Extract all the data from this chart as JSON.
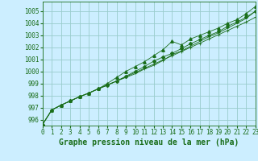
{
  "background_color": "#cceeff",
  "grid_color": "#99cccc",
  "line_color": "#1a6e1a",
  "x_values": [
    0,
    1,
    2,
    3,
    4,
    5,
    6,
    7,
    8,
    9,
    10,
    11,
    12,
    13,
    14,
    15,
    16,
    17,
    18,
    19,
    20,
    21,
    22,
    23
  ],
  "y_main": [
    995.6,
    996.8,
    997.2,
    997.55,
    997.9,
    998.2,
    998.55,
    998.85,
    999.2,
    999.6,
    1000.0,
    1000.4,
    1000.85,
    1001.2,
    1001.5,
    1001.9,
    1002.3,
    1002.65,
    1003.0,
    1003.3,
    1003.75,
    1004.1,
    1004.5,
    1005.0
  ],
  "y_upper": [
    995.6,
    996.8,
    997.2,
    997.55,
    997.9,
    998.2,
    998.55,
    999.0,
    999.5,
    1000.0,
    1000.4,
    1000.8,
    1001.3,
    1001.8,
    1002.5,
    1002.2,
    1002.7,
    1003.0,
    1003.3,
    1003.6,
    1004.0,
    1004.3,
    1004.8,
    1005.4
  ],
  "y_lower": [
    995.6,
    996.8,
    997.2,
    997.55,
    997.9,
    998.2,
    998.55,
    998.85,
    999.2,
    999.5,
    999.8,
    1000.2,
    1000.5,
    1000.9,
    1001.4,
    1001.7,
    1002.1,
    1002.5,
    1002.9,
    1003.2,
    1003.6,
    1004.0,
    1004.4,
    1005.0
  ],
  "y_trend": [
    995.6,
    996.8,
    997.2,
    997.55,
    997.9,
    998.2,
    998.55,
    998.9,
    999.2,
    999.55,
    999.9,
    1000.25,
    1000.6,
    1000.95,
    1001.3,
    1001.65,
    1002.0,
    1002.35,
    1002.7,
    1003.05,
    1003.4,
    1003.75,
    1004.1,
    1004.5
  ],
  "ylim": [
    995.5,
    1005.8
  ],
  "yticks": [
    996,
    997,
    998,
    999,
    1000,
    1001,
    1002,
    1003,
    1004,
    1005
  ],
  "xlim": [
    0,
    23
  ],
  "xticks": [
    0,
    1,
    2,
    3,
    4,
    5,
    6,
    7,
    8,
    9,
    10,
    11,
    12,
    13,
    14,
    15,
    16,
    17,
    18,
    19,
    20,
    21,
    22,
    23
  ],
  "xlabel": "Graphe pression niveau de la mer (hPa)",
  "tick_fontsize": 5.5,
  "xlabel_fontsize": 7
}
